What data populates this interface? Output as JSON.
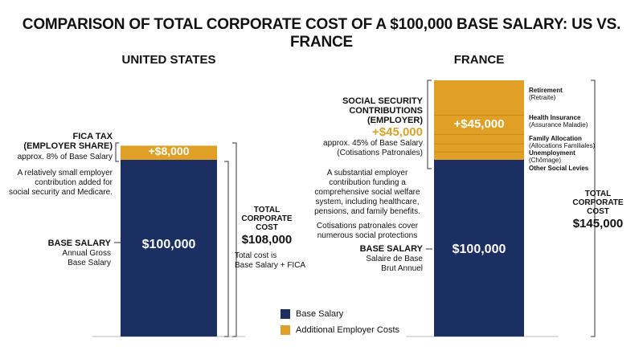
{
  "title": "COMPARISON OF TOTAL CORPORATE COST OF A $100,000 BASE SALARY: US VS. FRANCE",
  "colors": {
    "base": "#1b2f63",
    "additional": "#e0a025"
  },
  "chart_data": {
    "type": "bar",
    "stacked": true,
    "categories": [
      "UNITED STATES",
      "FRANCE"
    ],
    "series": [
      {
        "name": "Base Salary",
        "values": [
          100000,
          100000
        ]
      },
      {
        "name": "Additional Employer Costs",
        "values": [
          8000,
          45000
        ]
      }
    ],
    "france_breakdown": [
      "Retirement",
      "Health Insurance",
      "Family Allocation",
      "Unemployment",
      "Other Social Levies"
    ],
    "legend": [
      "Base Salary",
      "Additional Employer Costs"
    ],
    "legend_position": "bottom-center",
    "ylim": [
      0,
      145000
    ]
  },
  "us": {
    "header": "UNITED STATES",
    "base_value_label": "$100,000",
    "add_value_label": "+$8,000",
    "fica_title_1": "FICA TAX",
    "fica_title_2": "(EMPLOYER SHARE)",
    "fica_sub": "approx. 8% of Base Salary",
    "fica_desc": [
      "A relatively small employer",
      "contribution added for",
      "social security and Medicare."
    ],
    "base_title": "BASE SALARY",
    "base_sub": [
      "Annual Gross",
      "Base Salary"
    ],
    "total_title": [
      "TOTAL",
      "CORPORATE",
      "COST"
    ],
    "total_value": "$108,000",
    "total_desc": [
      "Total cost is",
      "Base Salary + FICA"
    ]
  },
  "france": {
    "header": "FRANCE",
    "base_value_label": "$100,000",
    "add_value_label": "+$45,000",
    "ss_title": [
      "SOCIAL SECURITY",
      "CONTRIBUTIONS",
      "(EMPLOYER)"
    ],
    "ss_value": "+$45,000",
    "ss_sub": [
      "approx. 45% of Base Salary",
      "(Cotisations Patronales)"
    ],
    "ss_desc": [
      "A substantial employer",
      "contribution funding a",
      "comprehensive social welfare",
      "system, including healthcare,",
      "pensions, and family benefits."
    ],
    "ss_desc2": [
      "Cotisations patronales cover",
      "numerous social protections"
    ],
    "base_title": "BASE SALARY",
    "base_sub": [
      "Salaire de Base",
      "Brut Annuel"
    ],
    "breakdown": [
      {
        "title": "Retirement",
        "sub": "(Retraite)"
      },
      {
        "title": "Health Insurance",
        "sub": "(Assurance Maladie)"
      },
      {
        "title": "Family Allocation",
        "sub": "(Allocations Familiales)"
      },
      {
        "title": "Unemployment",
        "sub": "(Chômage)"
      },
      {
        "title": "Other Social Levies",
        "sub": ""
      }
    ],
    "total_title": [
      "TOTAL",
      "CORPORATE",
      "COST"
    ],
    "total_value": "$145,000"
  },
  "legend": {
    "base": "Base Salary",
    "additional": "Additional Employer Costs"
  }
}
